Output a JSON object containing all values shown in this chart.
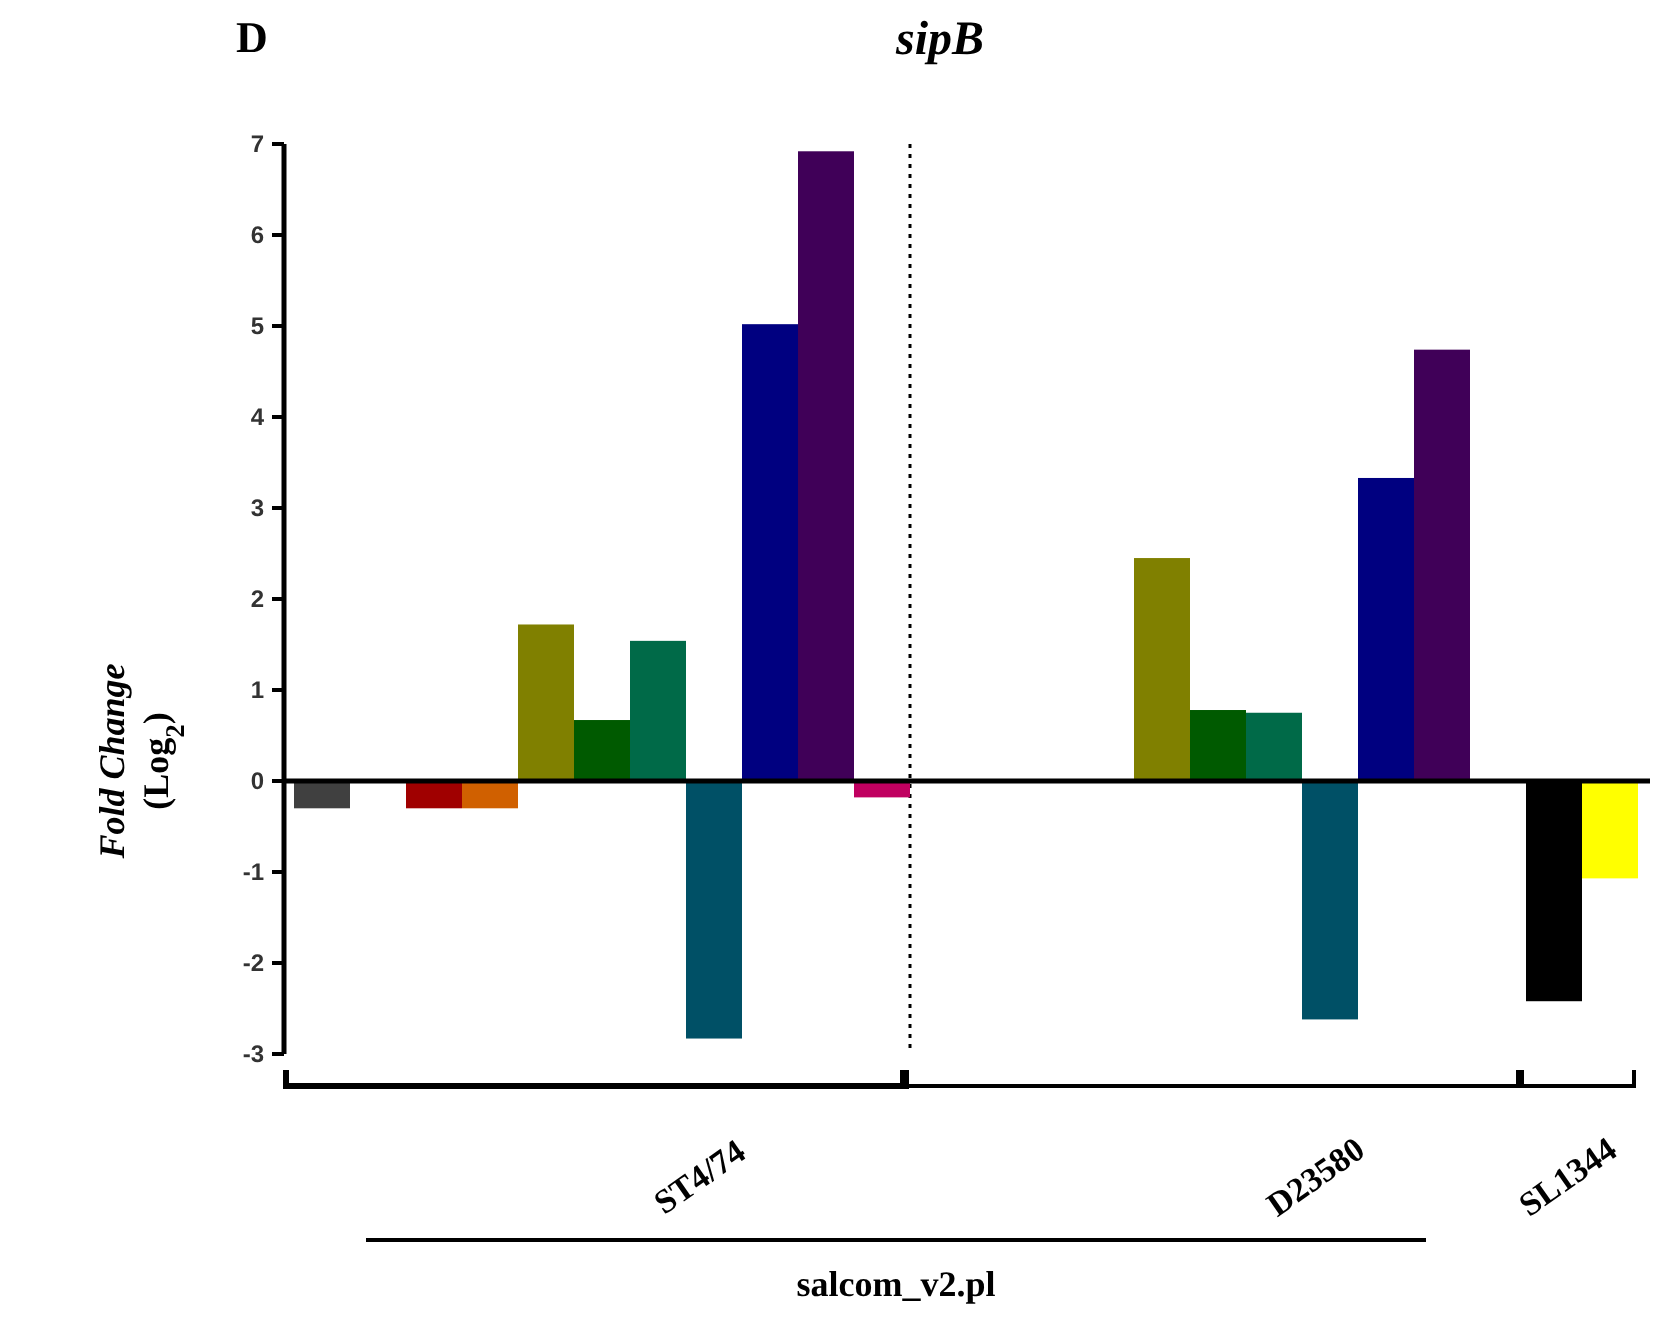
{
  "chart_data": {
    "type": "bar",
    "title": "sipB",
    "ylabel": "Fold Change (Log$_{2}$)",
    "categories": [
      null,
      null,
      null,
      null,
      null,
      null,
      null,
      null,
      null,
      null,
      null,
      null,
      null,
      null,
      null,
      null,
      null,
      null,
      null,
      null,
      null,
      null,
      null,
      null
    ],
    "values": [
      -0.3,
      null,
      -0.3,
      -0.3,
      1.72,
      0.67,
      1.54,
      -2.83,
      5.02,
      6.92,
      -0.18,
      null,
      null,
      null,
      null,
      2.45,
      0.78,
      0.75,
      -2.62,
      3.33,
      4.74,
      null,
      -2.42,
      -1.07
    ],
    "colors": [
      "#404040",
      null,
      "#a00000",
      "#d06000",
      "#808000",
      "#005a00",
      "#006a48",
      "#005066",
      "#000080",
      "#400058",
      "#c00060",
      null,
      null,
      null,
      null,
      "#808000",
      "#005a00",
      "#006a48",
      "#005066",
      "#000080",
      "#400058",
      null,
      "#000000",
      "#ffff00"
    ],
    "ylim": [
      -3,
      7
    ],
    "yticks": [
      -3,
      -2,
      -1,
      0,
      1,
      2,
      3,
      4,
      5,
      6,
      7
    ],
    "grid": false,
    "tick_labels": "y",
    "annotations": [
      "D",
      "ST4/74",
      "D23580",
      "SL1344",
      "salcom_v2.pl"
    ]
  }
}
